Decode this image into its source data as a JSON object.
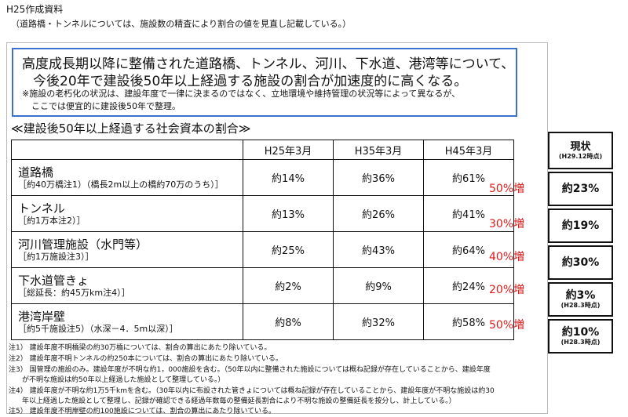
{
  "header": {
    "source_title": "H25作成資料",
    "source_note": "（道路橋・トンネルについては、施設数の精査により割合の値を見直し記載している。）"
  },
  "headline": {
    "line1": "高度成長期以降に整備された道路橋、トンネル、河川、下水道、港湾等について、",
    "line2": "今後20年で建設後50年以上経過する施設の割合が加速度的に高くなる。",
    "note_line1": "※施設の老朽化の状況は、建設年度で一律に決まるのではなく、立地環境や維持管理の状況等によって異なるが、",
    "note_line2": "ここでは便宜的に建設後50年で整理。"
  },
  "chart_data": {
    "type": "table",
    "title": "≪建設後50年以上経過する社会資本の割合≫",
    "columns": [
      "H25年3月",
      "H35年3月",
      "H45年3月"
    ],
    "rows": [
      {
        "name": "道路橋",
        "note": "［約40万橋注1）（橋長2m以上の橋約70万のうち）］",
        "values": [
          "約14%",
          "約36%",
          "約61%"
        ],
        "increase": "50%増",
        "current": "約23%",
        "current_note": ""
      },
      {
        "name": "トンネル",
        "note": "［約1万本注2）］",
        "values": [
          "約13%",
          "約26%",
          "約41%"
        ],
        "increase": "30%増",
        "current": "約19%",
        "current_note": ""
      },
      {
        "name": "河川管理施設（水門等）",
        "note": "［約1万施設注3）］",
        "values": [
          "約25%",
          "約43%",
          "約64%"
        ],
        "increase": "40%増",
        "current": "約30%",
        "current_note": ""
      },
      {
        "name": "下水道管きょ",
        "note": "［総延長：約45万km注4）］",
        "values": [
          "約2%",
          "約9%",
          "約24%"
        ],
        "increase": "20%増",
        "current": "約3%",
        "current_note": "(H28.3時点)"
      },
      {
        "name": "港湾岸壁",
        "note": "［約5千施設注5）（水深－4．5m以深）］",
        "values": [
          "約8%",
          "約32%",
          "約58%"
        ],
        "increase": "50%増",
        "current": "約10%",
        "current_note": "(H28.3時点)"
      }
    ],
    "current_header": "現状",
    "current_header_note": "(H29.12時点)",
    "colors": {
      "increase": "#e01a1a",
      "headline_border": "#3b6fd0"
    }
  },
  "footnotes": [
    "注1） 建設年度不明橋梁の約30万橋については、割合の算出にあたり除いている。",
    "注2） 建設年度不明トンネルの約250本については、割合の算出にあたり除いている。",
    "注3） 国管理の施設のみ。建設年度が不明な約1，000施設を含む。（50年以内に整備された施設については概ね記録が存在していることから、建設年度",
    "が不明な施設は約50年以上経過した施設として整理している。）",
    "注4） 建設年度が不明な約1万5千kmを含む。（30年以内に布設された管きょについては概ね記録が存在していることから、建設年度が不明な施設は約30",
    "年以上経過した施設として整理し、記録が確認できる経過年数毎の整備延長割合により不明な施設の整備延長を按分し、計上している。）",
    "注5） 建設年度不明岸壁の約100施設については、割合の算出にあたり除いている。"
  ]
}
